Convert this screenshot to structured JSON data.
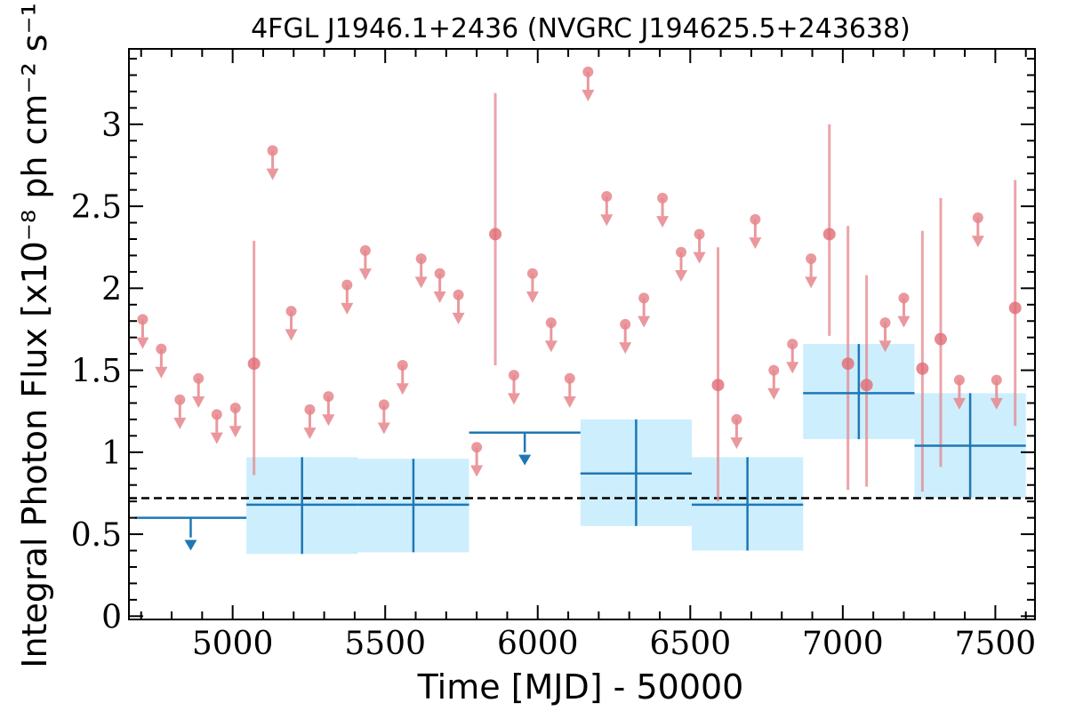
{
  "chart_data": {
    "type": "scatter",
    "title": "4FGL J1946.1+2436 (NVGRC J194625.5+243638)",
    "xlabel": "Time [MJD] - 50000",
    "ylabel": "Integral Photon Flux [x10⁻⁸ ph cm⁻² s⁻¹]",
    "xlim": [
      4660,
      7630
    ],
    "ylim": [
      -0.02,
      3.46
    ],
    "xticks": [
      5000,
      5500,
      6000,
      6500,
      7000,
      7500
    ],
    "xtick_labels": [
      "5000",
      "5500",
      "6000",
      "6500",
      "7000",
      "7500"
    ],
    "yticks": [
      0,
      0.5,
      1,
      1.5,
      2,
      2.5,
      3
    ],
    "ytick_labels": [
      "0",
      "0.5",
      "1",
      "1.5",
      "2",
      "2.5",
      "3"
    ],
    "colors": {
      "short_bins": "#e6868c",
      "long_bins": "#1f77b4",
      "error_band": "#cdeefd",
      "average_line": "#000000"
    },
    "average_flux": 0.72,
    "long_bins": [
      {
        "x0": 4680,
        "x1": 5045,
        "upper_limit": 0.6
      },
      {
        "x0": 5045,
        "x1": 5410,
        "y": 0.68,
        "y_lo": 0.38,
        "y_hi": 0.97
      },
      {
        "x0": 5410,
        "x1": 5775,
        "y": 0.68,
        "y_lo": 0.39,
        "y_hi": 0.96
      },
      {
        "x0": 5775,
        "x1": 6140,
        "upper_limit": 1.12
      },
      {
        "x0": 6140,
        "x1": 6505,
        "y": 0.87,
        "y_lo": 0.55,
        "y_hi": 1.2
      },
      {
        "x0": 6505,
        "x1": 6870,
        "y": 0.68,
        "y_lo": 0.4,
        "y_hi": 0.97
      },
      {
        "x0": 6870,
        "x1": 7235,
        "y": 1.36,
        "y_lo": 1.08,
        "y_hi": 1.66
      },
      {
        "x0": 7235,
        "x1": 7600,
        "y": 1.04,
        "y_lo": 0.72,
        "y_hi": 1.36
      }
    ],
    "short_bins": [
      {
        "x": 4705,
        "upper_limit": 1.81
      },
      {
        "x": 4766,
        "upper_limit": 1.63
      },
      {
        "x": 4827,
        "upper_limit": 1.32
      },
      {
        "x": 4888,
        "upper_limit": 1.45
      },
      {
        "x": 4948,
        "upper_limit": 1.23
      },
      {
        "x": 5009,
        "upper_limit": 1.27
      },
      {
        "x": 5070,
        "y": 1.54,
        "y_lo": 0.86,
        "y_hi": 2.29
      },
      {
        "x": 5131,
        "upper_limit": 2.84
      },
      {
        "x": 5192,
        "upper_limit": 1.86
      },
      {
        "x": 5253,
        "upper_limit": 1.26
      },
      {
        "x": 5314,
        "upper_limit": 1.34
      },
      {
        "x": 5375,
        "upper_limit": 2.02
      },
      {
        "x": 5435,
        "upper_limit": 2.23
      },
      {
        "x": 5496,
        "upper_limit": 1.29
      },
      {
        "x": 5557,
        "upper_limit": 1.53
      },
      {
        "x": 5618,
        "upper_limit": 2.18
      },
      {
        "x": 5679,
        "upper_limit": 2.09
      },
      {
        "x": 5740,
        "upper_limit": 1.96
      },
      {
        "x": 5800,
        "upper_limit": 1.03
      },
      {
        "x": 5861,
        "y": 2.33,
        "y_lo": 1.53,
        "y_hi": 3.19
      },
      {
        "x": 5922,
        "upper_limit": 1.47
      },
      {
        "x": 5983,
        "upper_limit": 2.09
      },
      {
        "x": 6044,
        "upper_limit": 1.79
      },
      {
        "x": 6105,
        "upper_limit": 1.45
      },
      {
        "x": 6165,
        "upper_limit": 3.32
      },
      {
        "x": 6226,
        "upper_limit": 2.56
      },
      {
        "x": 6287,
        "upper_limit": 1.78
      },
      {
        "x": 6348,
        "upper_limit": 1.94
      },
      {
        "x": 6409,
        "upper_limit": 2.55
      },
      {
        "x": 6470,
        "upper_limit": 2.22
      },
      {
        "x": 6530,
        "upper_limit": 2.33
      },
      {
        "x": 6591,
        "y": 1.41,
        "y_lo": 0.7,
        "y_hi": 2.25
      },
      {
        "x": 6652,
        "upper_limit": 1.2
      },
      {
        "x": 6713,
        "upper_limit": 2.42
      },
      {
        "x": 6774,
        "upper_limit": 1.5
      },
      {
        "x": 6835,
        "upper_limit": 1.66
      },
      {
        "x": 6896,
        "upper_limit": 2.18
      },
      {
        "x": 6956,
        "y": 2.33,
        "y_lo": 1.71,
        "y_hi": 3.0
      },
      {
        "x": 7017,
        "y": 1.54,
        "y_lo": 0.77,
        "y_hi": 2.38
      },
      {
        "x": 7078,
        "y": 1.41,
        "y_lo": 0.79,
        "y_hi": 2.08
      },
      {
        "x": 7139,
        "upper_limit": 1.79
      },
      {
        "x": 7200,
        "upper_limit": 1.94
      },
      {
        "x": 7261,
        "y": 1.51,
        "y_lo": 0.76,
        "y_hi": 2.35
      },
      {
        "x": 7321,
        "y": 1.69,
        "y_lo": 0.91,
        "y_hi": 2.55
      },
      {
        "x": 7382,
        "upper_limit": 1.44
      },
      {
        "x": 7443,
        "upper_limit": 2.43
      },
      {
        "x": 7504,
        "upper_limit": 1.44
      },
      {
        "x": 7565,
        "y": 1.88,
        "y_lo": 1.16,
        "y_hi": 2.66
      }
    ]
  }
}
